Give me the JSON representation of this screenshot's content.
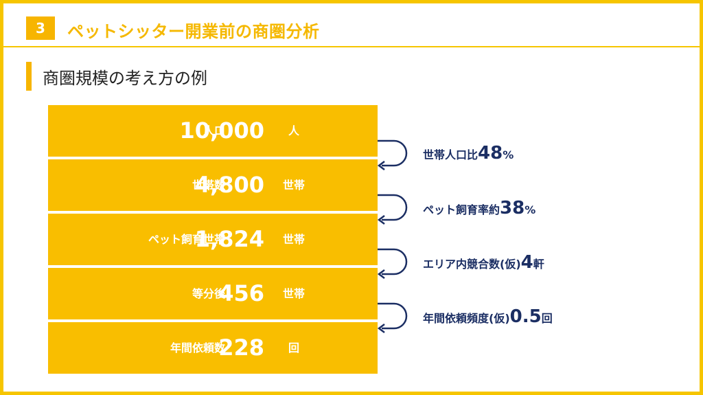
{
  "header": {
    "number": "3",
    "title": "ペットシッター開業前の商圏分析"
  },
  "subtitle": "商圏規模の考え方の例",
  "funnel": [
    {
      "label": "人口",
      "value": "10,000",
      "unit": "人"
    },
    {
      "label": "世帯数",
      "value": "4,800",
      "unit": "世帯"
    },
    {
      "label": "ペット飼育世帯",
      "value": "1,824",
      "unit": "世帯"
    },
    {
      "label": "等分後",
      "value": "456",
      "unit": "世帯"
    },
    {
      "label": "年間依頼数",
      "value": "228",
      "unit": "回"
    }
  ],
  "conversions": [
    {
      "prefix": "世帯人口比",
      "number": "48",
      "suffix": "%"
    },
    {
      "prefix": "ペット飼育率約",
      "number": "38",
      "suffix": "%"
    },
    {
      "prefix": "エリア内競合数(仮)",
      "number": "4",
      "suffix": "軒"
    },
    {
      "prefix": "年間依頼頻度(仮)",
      "number": "0.5",
      "suffix": "回"
    }
  ],
  "colors": {
    "accent": "#f9be00",
    "navy": "#1b2e63"
  }
}
